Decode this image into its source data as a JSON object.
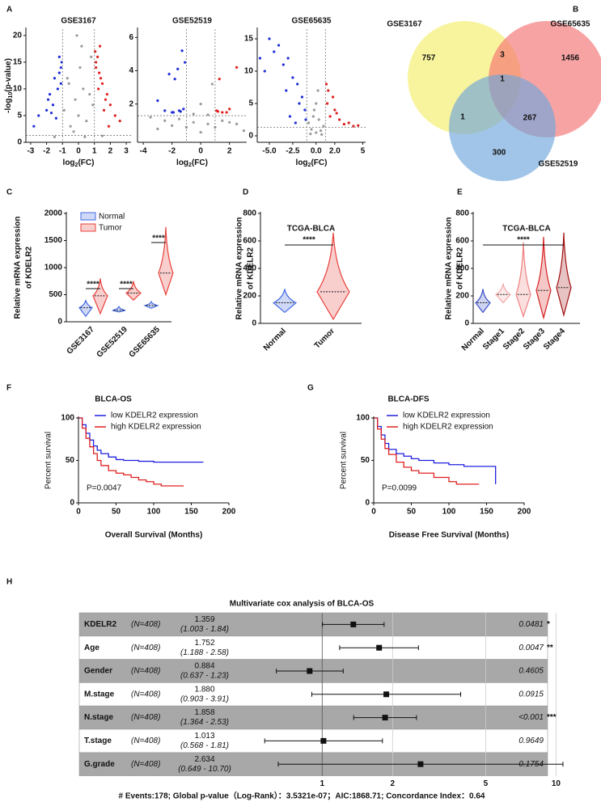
{
  "chart_data": [
    {
      "type": "scatter",
      "panel": "A",
      "title": "GSE3167",
      "x_label": [
        "log",
        "2",
        "(FC)"
      ],
      "y_label": [
        "-log",
        "10",
        "(p-value)"
      ],
      "xlim": [
        -3.3,
        3.3
      ],
      "xticks": [
        -3,
        -2,
        -1,
        0,
        1,
        2,
        3
      ],
      "ylim": [
        0,
        21.2
      ],
      "yticks": [
        0,
        5,
        10,
        15,
        20
      ],
      "vlines": [
        -1,
        1
      ],
      "hline": 1.3,
      "series": [
        {
          "color": "#9a9a9a",
          "x": [
            -0.5,
            0,
            0.5,
            -0.2,
            0.3,
            -0.7,
            0.7,
            -0.9,
            0.9,
            0.1,
            -0.3,
            0.4,
            0.8,
            -0.6,
            -1.5,
            1.5,
            0.2,
            -0.1
          ],
          "values": [
            3,
            5,
            4,
            8,
            10,
            12,
            9,
            6,
            7,
            14,
            2,
            1,
            16,
            11,
            1,
            1.2,
            18,
            20
          ]
        },
        {
          "color": "#1f2fd6",
          "x": [
            -1.2,
            -1.5,
            -1.1,
            -1.8,
            -2.0,
            -1.3,
            -2.5,
            -1.6,
            -1.1,
            -1.4,
            -1.9,
            -2.8,
            -1.2,
            -1.7,
            -1.05
          ],
          "values": [
            16,
            12,
            14,
            9,
            6,
            10,
            5,
            7,
            11,
            4.5,
            8,
            3,
            13,
            5.5,
            15
          ]
        },
        {
          "color": "#e02020",
          "x": [
            1.1,
            1.3,
            1.5,
            1.8,
            2.0,
            1.2,
            1.6,
            2.3,
            1.4,
            1.1,
            2.6,
            1.7,
            1.25,
            1.9,
            1.05,
            1.35
          ],
          "values": [
            15,
            13,
            11,
            9,
            7,
            16,
            6,
            5,
            12,
            14,
            4,
            8,
            10,
            3,
            17,
            18
          ]
        }
      ]
    },
    {
      "type": "scatter",
      "title": "GSE52519",
      "x_label": [
        "log",
        "2",
        "(FC)"
      ],
      "xlim": [
        -4.4,
        3.2
      ],
      "xticks": [
        -4,
        -2,
        0,
        2
      ],
      "ylim": [
        -0.3,
        6.5
      ],
      "yticks": [
        2,
        4,
        6
      ],
      "vlines": [
        -1,
        1
      ],
      "hline": 1.3,
      "series": [
        {
          "color": "#9a9a9a",
          "x": [
            -3.5,
            -2.5,
            -1.5,
            -0.5,
            0.5,
            1.5,
            2.5,
            -3,
            3,
            0,
            -1,
            1,
            -0.5,
            0.5,
            -2,
            2,
            0,
            0.8
          ],
          "values": [
            1.2,
            1.0,
            1.1,
            0.9,
            0.8,
            1.0,
            0.8,
            0.5,
            0.4,
            0.3,
            0.6,
            0.6,
            1.4,
            1.35,
            0.7,
            0.9,
            2.0,
            3.2
          ]
        },
        {
          "color": "#1f2fd6",
          "x": [
            -1.5,
            -2,
            -1.2,
            -2.5,
            -1.8,
            -1.1,
            -2.2,
            -3.0,
            -1.4,
            -1.6,
            -1.3,
            -1.9
          ],
          "values": [
            1.6,
            1.5,
            1.7,
            1.6,
            3.5,
            4.5,
            3.8,
            2.2,
            1.55,
            4.1,
            5.2,
            1.5
          ]
        },
        {
          "color": "#e02020",
          "x": [
            1.1,
            1.5,
            2.0,
            1.3,
            2.5,
            1.8,
            1.2
          ],
          "values": [
            1.6,
            1.5,
            1.7,
            3.5,
            4.2,
            1.5,
            1.55
          ]
        }
      ]
    },
    {
      "type": "scatter",
      "title": "GSE65635",
      "x_label": [
        "log",
        "2",
        "(FC)"
      ],
      "xlim": [
        -6.3,
        5.3
      ],
      "xticks": [
        {
          "value": -5,
          "label": "-5.0"
        },
        {
          "value": -2.5,
          "label": "-2.5"
        },
        {
          "value": 0,
          "label": "0.0"
        },
        {
          "value": 2,
          "label": "2.0"
        },
        5
      ],
      "ylim": [
        -1,
        16.5
      ],
      "yticks": [
        0,
        5,
        10,
        15
      ],
      "vlines": [
        -1,
        1
      ],
      "hline": 1.3,
      "series": [
        {
          "color": "#9a9a9a",
          "x": [
            -0.5,
            0,
            0.5,
            -0.8,
            0.8,
            -0.3,
            0.3,
            0,
            -0.6,
            0.6,
            0.2,
            -0.2
          ],
          "values": [
            1,
            0.5,
            0.8,
            2,
            1.5,
            3,
            2.5,
            5,
            0.3,
            0.2,
            7,
            4
          ]
        },
        {
          "color": "#1f2fd6",
          "x": [
            -3,
            -4,
            -2.5,
            -5,
            -1.5,
            -3.5,
            -2,
            -4.5,
            -1.2,
            -6,
            -3.2,
            -2.8,
            -1.8,
            -5.5,
            -2.2,
            -1.1
          ],
          "values": [
            12,
            14,
            9,
            15,
            6,
            11,
            8,
            13,
            4,
            12,
            7,
            3,
            5,
            10,
            2,
            2.5
          ]
        },
        {
          "color": "#e02020",
          "x": [
            1.2,
            1.5,
            2,
            2.5,
            3,
            1.8,
            3.5,
            4,
            1.3,
            2.2,
            1.1,
            4.5
          ],
          "values": [
            5,
            3,
            4,
            2.5,
            1.8,
            6,
            2,
            1.5,
            7,
            3.5,
            8,
            1.6
          ]
        }
      ]
    },
    {
      "type": "venn",
      "panel": "B",
      "sets": [
        {
          "name": "GSE3167",
          "color": "#f5ee6a"
        },
        {
          "name": "GSE65635",
          "color": "#f47272"
        },
        {
          "name": "GSE52519",
          "color": "#6ea6dc"
        }
      ],
      "values": [
        757,
        3,
        1456,
        1,
        1,
        267,
        300
      ]
    },
    {
      "type": "violin",
      "panel": "C",
      "y_label": [
        "Relative mRNA expression",
        "of KDELR2"
      ],
      "categories": [
        "GSE3167",
        "GSE52519",
        "GSE65635"
      ],
      "ylim": [
        0,
        2000
      ],
      "yticks": [
        0,
        500,
        1000,
        1500,
        2000
      ],
      "series": [
        {
          "name": "Normal",
          "color": "#4169e1",
          "median": [
            260,
            210,
            300
          ],
          "min": [
            100,
            180,
            250
          ],
          "max": [
            400,
            280,
            370
          ]
        },
        {
          "name": "Tumor",
          "color": "#e8413c",
          "median": [
            480,
            530,
            900
          ],
          "min": [
            150,
            400,
            500
          ],
          "max": [
            800,
            750,
            1750
          ]
        }
      ],
      "annotations": [
        "****",
        "****",
        "****"
      ]
    },
    {
      "type": "violin",
      "panel": "D",
      "title": "TCGA-BLCA",
      "y_label": [
        "Relative mRNA expression",
        "of KDELR2"
      ],
      "categories": [
        "Normal",
        "Tumor"
      ],
      "ylim": [
        0,
        800
      ],
      "yticks": [
        0,
        200,
        400,
        600,
        800
      ],
      "colors": [
        "#4169e1",
        "#e8413c"
      ],
      "median": [
        150,
        230
      ],
      "min": [
        80,
        30
      ],
      "max": [
        250,
        660
      ],
      "annotations": [
        "****"
      ]
    },
    {
      "type": "violin",
      "panel": "E",
      "title": "TCGA-BLCA",
      "y_label": [
        "Relative mRNA expression",
        "of KDELR2"
      ],
      "categories": [
        "Normal",
        "Stage1",
        "Stage2",
        "Stage3",
        "Stage4"
      ],
      "ylim": [
        0,
        800
      ],
      "yticks": [
        0,
        200,
        400,
        600,
        800
      ],
      "colors": [
        "#3a50c8",
        "#f4a6a6",
        "#f08080",
        "#d62020",
        "#a01010"
      ],
      "median": [
        150,
        210,
        210,
        240,
        260
      ],
      "min": [
        80,
        150,
        50,
        40,
        60
      ],
      "max": [
        250,
        290,
        590,
        630,
        660
      ],
      "annotations": [
        "****"
      ]
    },
    {
      "type": "line",
      "panel": "F",
      "title": "BLCA-OS",
      "x_label": "Overall Survival (Months)",
      "y_label": "Percent survival",
      "annotation": "P=0.0047",
      "xlim": [
        0,
        200
      ],
      "xticks": [
        0,
        50,
        100,
        150,
        200
      ],
      "ylim": [
        0,
        100
      ],
      "yticks": [
        0,
        50,
        100
      ],
      "series": [
        {
          "name": "low KDELR2 expression",
          "color": "#2020e0",
          "x": [
            0,
            5,
            10,
            15,
            20,
            25,
            30,
            40,
            50,
            60,
            80,
            100,
            120,
            166
          ],
          "values": [
            100,
            92,
            82,
            74,
            67,
            62,
            58,
            54,
            51,
            50,
            49,
            48,
            48,
            48
          ]
        },
        {
          "name": "high KDELR2 expression",
          "color": "#e02020",
          "x": [
            0,
            5,
            10,
            15,
            20,
            25,
            30,
            40,
            50,
            60,
            70,
            80,
            90,
            100,
            110,
            140
          ],
          "values": [
            100,
            88,
            76,
            66,
            58,
            50,
            44,
            38,
            35,
            33,
            30,
            27,
            25,
            22,
            20,
            20
          ]
        }
      ]
    },
    {
      "type": "line",
      "panel": "G",
      "title": "BLCA-DFS",
      "x_label": "Disease Free Survival (Months)",
      "y_label": "Percent survival",
      "annotation": "P=0.0099",
      "xlim": [
        0,
        200
      ],
      "xticks": [
        0,
        50,
        100,
        150,
        200
      ],
      "ylim": [
        0,
        100
      ],
      "yticks": [
        0,
        50,
        100
      ],
      "series": [
        {
          "name": "low KDELR2 expression",
          "color": "#2020e0",
          "x": [
            0,
            5,
            10,
            15,
            20,
            30,
            40,
            50,
            60,
            80,
            100,
            120,
            162,
            162
          ],
          "values": [
            100,
            90,
            80,
            70,
            63,
            58,
            55,
            52,
            50,
            47,
            45,
            43,
            43,
            22
          ]
        },
        {
          "name": "high KDELR2 expression",
          "color": "#e02020",
          "x": [
            0,
            5,
            10,
            15,
            20,
            30,
            40,
            50,
            60,
            80,
            100,
            110,
            140
          ],
          "values": [
            100,
            87,
            75,
            64,
            57,
            48,
            42,
            38,
            35,
            30,
            25,
            22,
            22
          ]
        }
      ]
    },
    {
      "type": "forest",
      "panel": "H",
      "title": "Multivariate cox analysis of BLCA-OS",
      "log": true,
      "xlim": [
        0.45,
        11.5
      ],
      "xticks": [
        1,
        2,
        5,
        10
      ],
      "rows": [
        {
          "name": "KDELR2",
          "n": "(N=408)",
          "hr": 1.359,
          "ci": [
            1.003,
            1.84
          ],
          "ci_label": "(1.003 -  1.84)",
          "p": "0.0481",
          "stars": "*"
        },
        {
          "name": "Age",
          "n": "(N=408)",
          "hr": 1.752,
          "ci": [
            1.188,
            2.58
          ],
          "ci_label": "(1.188 -  2.58)",
          "p": "0.0047",
          "stars": "**"
        },
        {
          "name": "Gender",
          "n": "(N=408)",
          "hr": 0.884,
          "ci": [
            0.637,
            1.23
          ],
          "ci_label": "(0.637 -  1.23)",
          "p": "0.4605"
        },
        {
          "name": "M.stage",
          "n": "(N=408)",
          "hr": 1.88,
          "hr_label": "1.880",
          "ci": [
            0.903,
            3.91
          ],
          "ci_label": "(0.903 -  3.91)",
          "p": "0.0915"
        },
        {
          "name": "N.stage",
          "n": "(N=408)",
          "hr": 1.858,
          "ci": [
            1.364,
            2.53
          ],
          "ci_label": "(1.364 -  2.53)",
          "p": "<0.001",
          "stars": "***"
        },
        {
          "name": "T.stage",
          "n": "(N=408)",
          "hr": 1.013,
          "ci": [
            0.568,
            1.81
          ],
          "ci_label": "(0.568 -  1.81)",
          "p": "0.9649"
        },
        {
          "name": "G.grade",
          "n": "(N=408)",
          "hr": 2.634,
          "ci": [
            0.649,
            10.7
          ],
          "ci_label": "(0.649 - 10.70)",
          "p": "0.1754"
        }
      ],
      "footer": "# Events:178; Global p-value（Log-Rank）：3.5321e-07；AIC:1868.71; Concordance Index：0.64"
    }
  ]
}
